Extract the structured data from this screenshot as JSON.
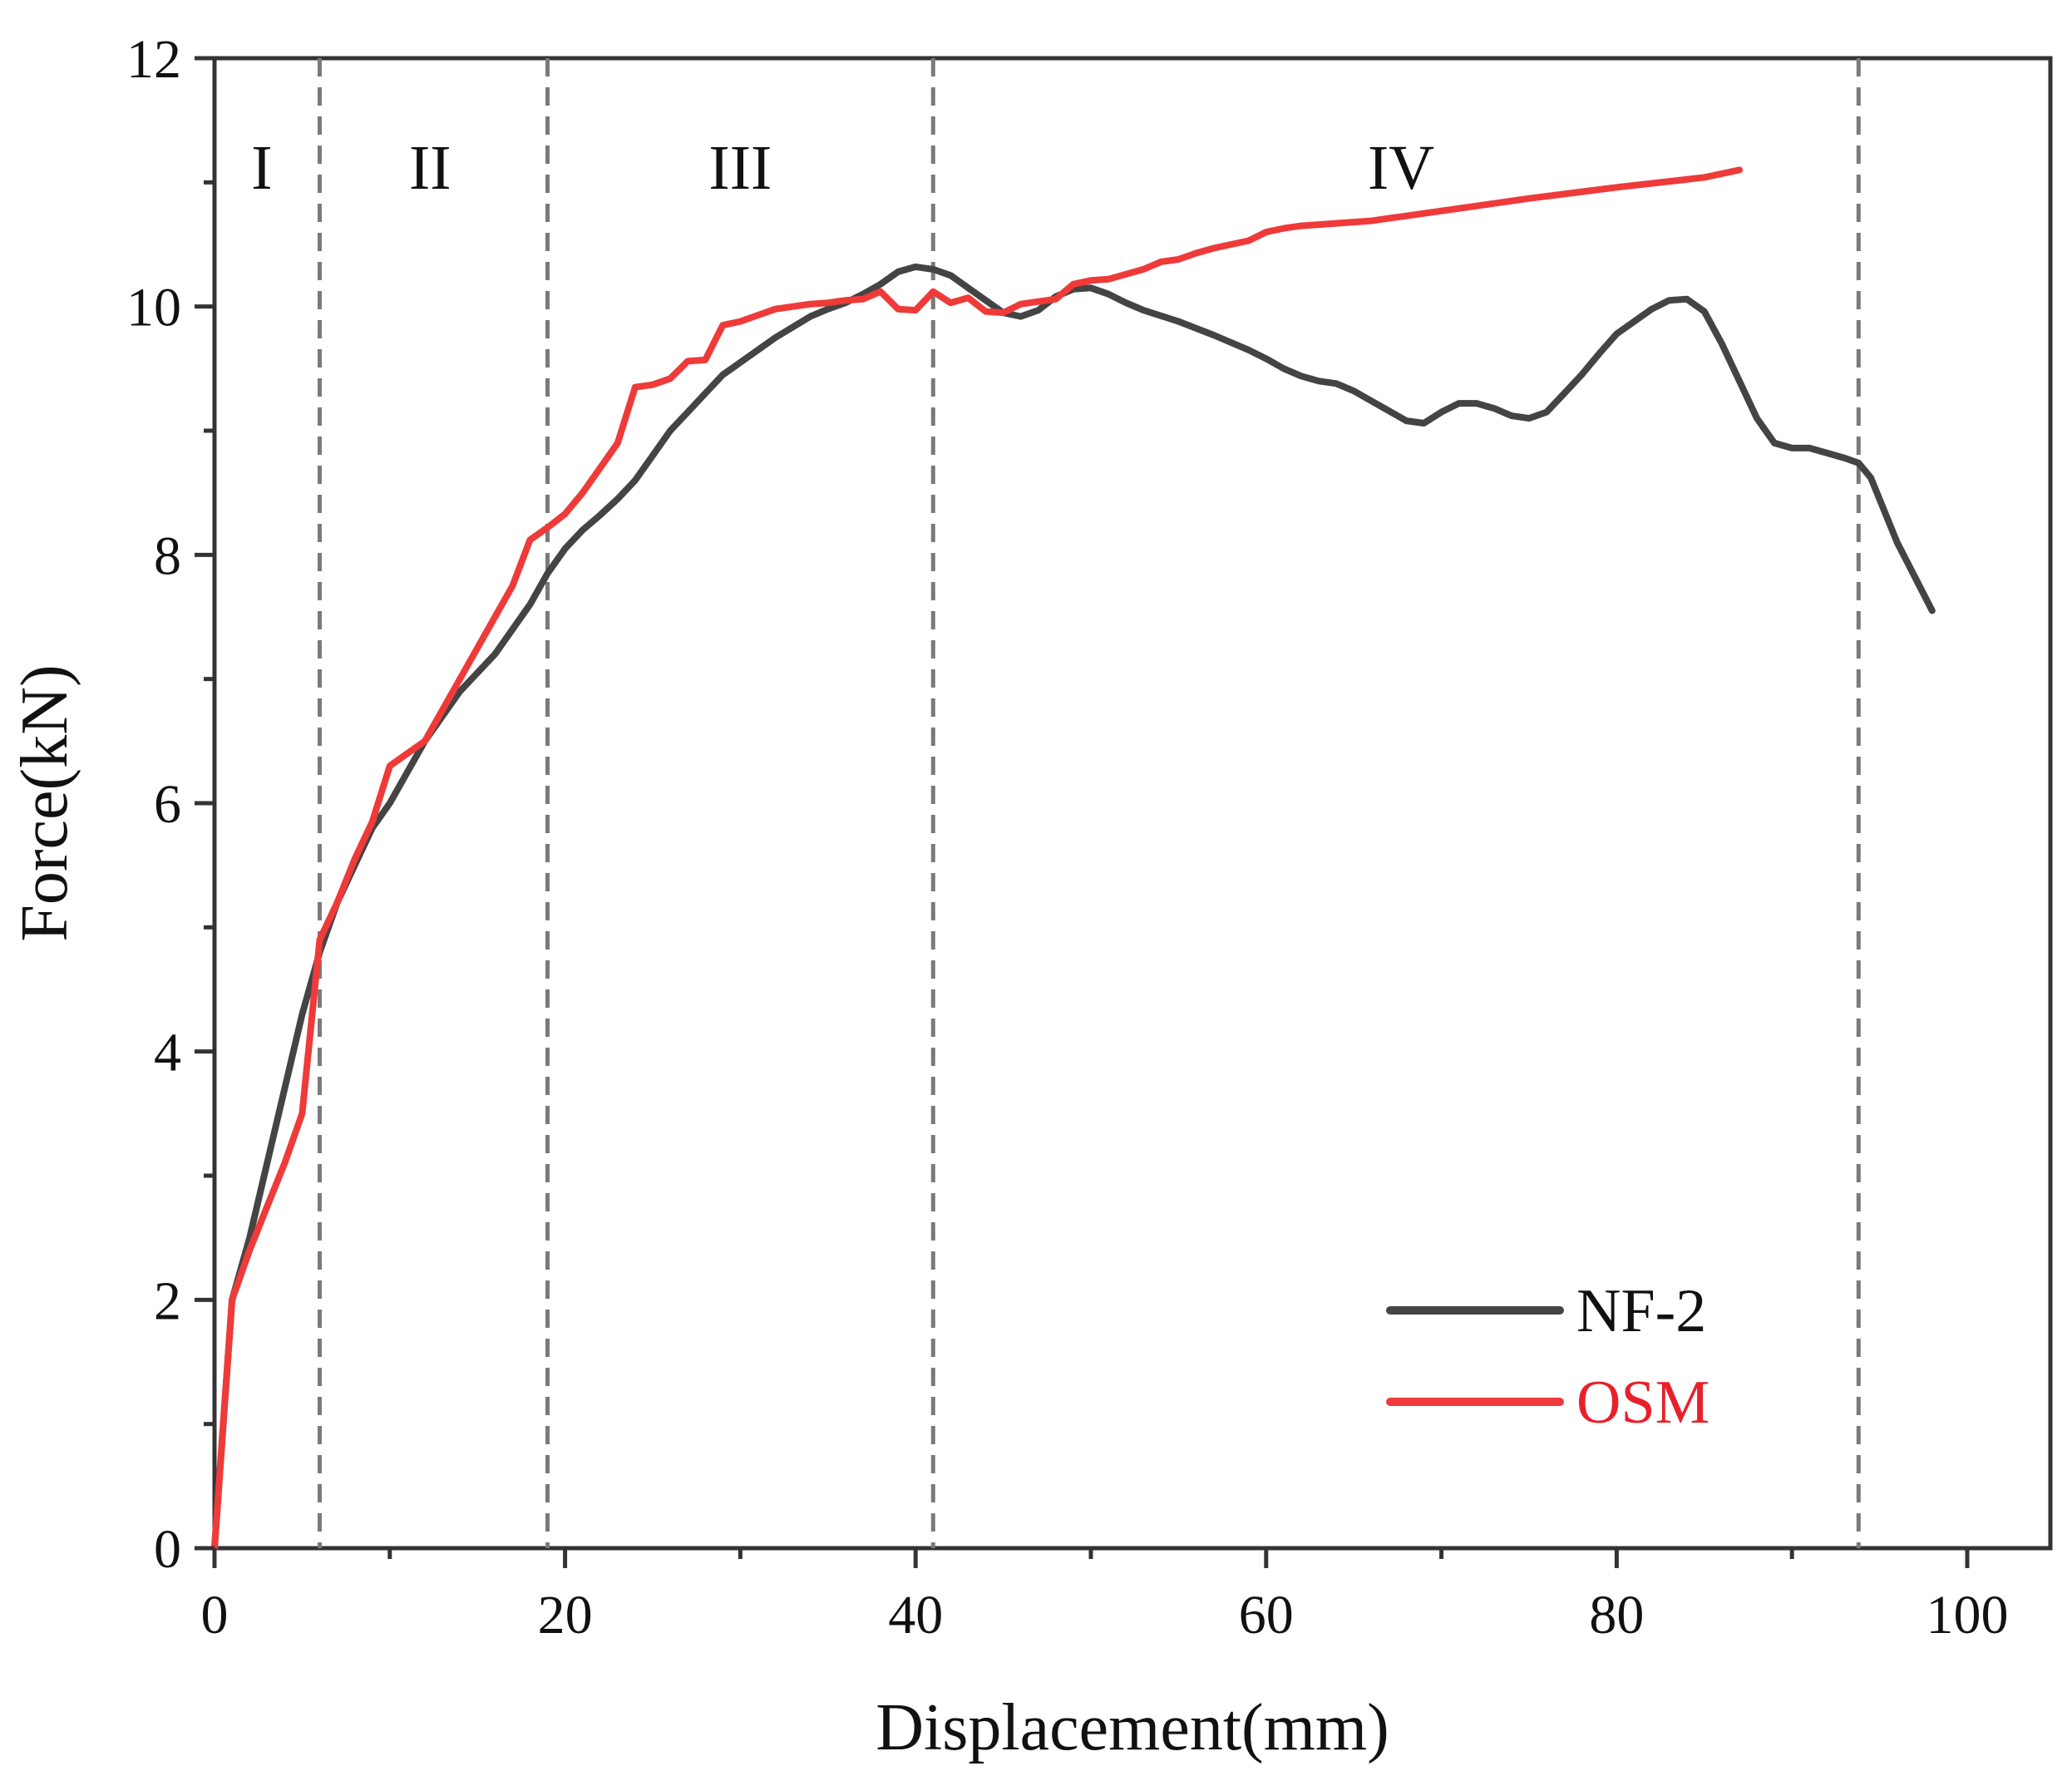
{
  "chart_data": {
    "type": "line",
    "title": "",
    "xlabel": "Displacement(mm)",
    "ylabel": "Force(kN)",
    "xlim": [
      0,
      105
    ],
    "ylim": [
      0,
      12
    ],
    "xticks": [
      0,
      20,
      40,
      60,
      80,
      100
    ],
    "yticks": [
      0,
      2,
      4,
      6,
      8,
      10,
      12
    ],
    "xtick_labels": [
      "0",
      "20",
      "40",
      "60",
      "80",
      "100"
    ],
    "ytick_labels": [
      "0",
      "2",
      "4",
      "6",
      "8",
      "10",
      "12"
    ],
    "grid": false,
    "legend_position": "bottom-right",
    "region_boundaries": [
      6,
      19,
      41,
      93.8
    ],
    "regions": [
      {
        "label": "I",
        "x": 2.7
      },
      {
        "label": "II",
        "x": 12.3
      },
      {
        "label": "III",
        "x": 30
      },
      {
        "label": "IV",
        "x": 67.7
      }
    ],
    "series": [
      {
        "name": "NF-2",
        "color": "#444444",
        "x": [
          0,
          0.5,
          1,
          2,
          3,
          4,
          5,
          6,
          7,
          8,
          9,
          10,
          12,
          14,
          16,
          17,
          18,
          19,
          20,
          21,
          22,
          23,
          24,
          25,
          26,
          27,
          28,
          29,
          30,
          32,
          34,
          35,
          36,
          37,
          38,
          39,
          40,
          41,
          42,
          43,
          44,
          45,
          46,
          47,
          48,
          49,
          50,
          51,
          52,
          53,
          55,
          57,
          59,
          60,
          61,
          62,
          63,
          64,
          65,
          66,
          67,
          68,
          69,
          70,
          71,
          72,
          73,
          74,
          75,
          76,
          77,
          78,
          79,
          80,
          81,
          82,
          83,
          84,
          85,
          86,
          87,
          88,
          89,
          90,
          91,
          92,
          93,
          93.8,
          94.5,
          96,
          98
        ],
        "y": [
          0,
          1.0,
          2.0,
          2.5,
          3.1,
          3.7,
          4.3,
          4.8,
          5.2,
          5.5,
          5.8,
          6.0,
          6.5,
          6.9,
          7.2,
          7.4,
          7.6,
          7.85,
          8.05,
          8.2,
          8.32,
          8.45,
          8.6,
          8.8,
          9.0,
          9.15,
          9.3,
          9.45,
          9.55,
          9.75,
          9.92,
          9.98,
          10.03,
          10.1,
          10.18,
          10.28,
          10.32,
          10.3,
          10.25,
          10.15,
          10.05,
          9.95,
          9.92,
          9.97,
          10.08,
          10.14,
          10.15,
          10.1,
          10.03,
          9.97,
          9.88,
          9.77,
          9.65,
          9.58,
          9.5,
          9.44,
          9.4,
          9.38,
          9.32,
          9.24,
          9.16,
          9.08,
          9.06,
          9.15,
          9.22,
          9.22,
          9.18,
          9.12,
          9.1,
          9.15,
          9.3,
          9.45,
          9.62,
          9.78,
          9.88,
          9.98,
          10.05,
          10.06,
          9.96,
          9.7,
          9.4,
          9.1,
          8.9,
          8.86,
          8.86,
          8.82,
          8.78,
          8.74,
          8.62,
          8.1,
          7.55
        ]
      },
      {
        "name": "OSM",
        "color": "#ef3a3a",
        "x": [
          0,
          0.5,
          1,
          2,
          3,
          4,
          5,
          6,
          7,
          8,
          9,
          10,
          12,
          14,
          15,
          16,
          17,
          18,
          19,
          20,
          21,
          22,
          23,
          24,
          25,
          26,
          27,
          28,
          29,
          30,
          31,
          32,
          34,
          35,
          36,
          37,
          38,
          39,
          40,
          41,
          42,
          43,
          44,
          45,
          46,
          47,
          48,
          49,
          50,
          51,
          52,
          53,
          54,
          55,
          56,
          57,
          58,
          59,
          60,
          61,
          62,
          63,
          64,
          65,
          66,
          67,
          68,
          69,
          70,
          75,
          80,
          85,
          87
        ],
        "y": [
          0,
          1.0,
          2.0,
          2.4,
          2.75,
          3.1,
          3.5,
          4.9,
          5.2,
          5.55,
          5.85,
          6.3,
          6.5,
          7.0,
          7.25,
          7.5,
          7.75,
          8.12,
          8.22,
          8.33,
          8.5,
          8.7,
          8.9,
          9.35,
          9.37,
          9.42,
          9.56,
          9.57,
          9.85,
          9.88,
          9.93,
          9.98,
          10.02,
          10.03,
          10.05,
          10.06,
          10.12,
          9.98,
          9.97,
          10.12,
          10.03,
          10.07,
          9.96,
          9.95,
          10.02,
          10.04,
          10.06,
          10.18,
          10.21,
          10.22,
          10.26,
          10.3,
          10.36,
          10.38,
          10.43,
          10.47,
          10.5,
          10.53,
          10.6,
          10.63,
          10.65,
          10.66,
          10.67,
          10.68,
          10.69,
          10.71,
          10.73,
          10.75,
          10.77,
          10.87,
          10.96,
          11.04,
          11.1
        ]
      }
    ]
  }
}
